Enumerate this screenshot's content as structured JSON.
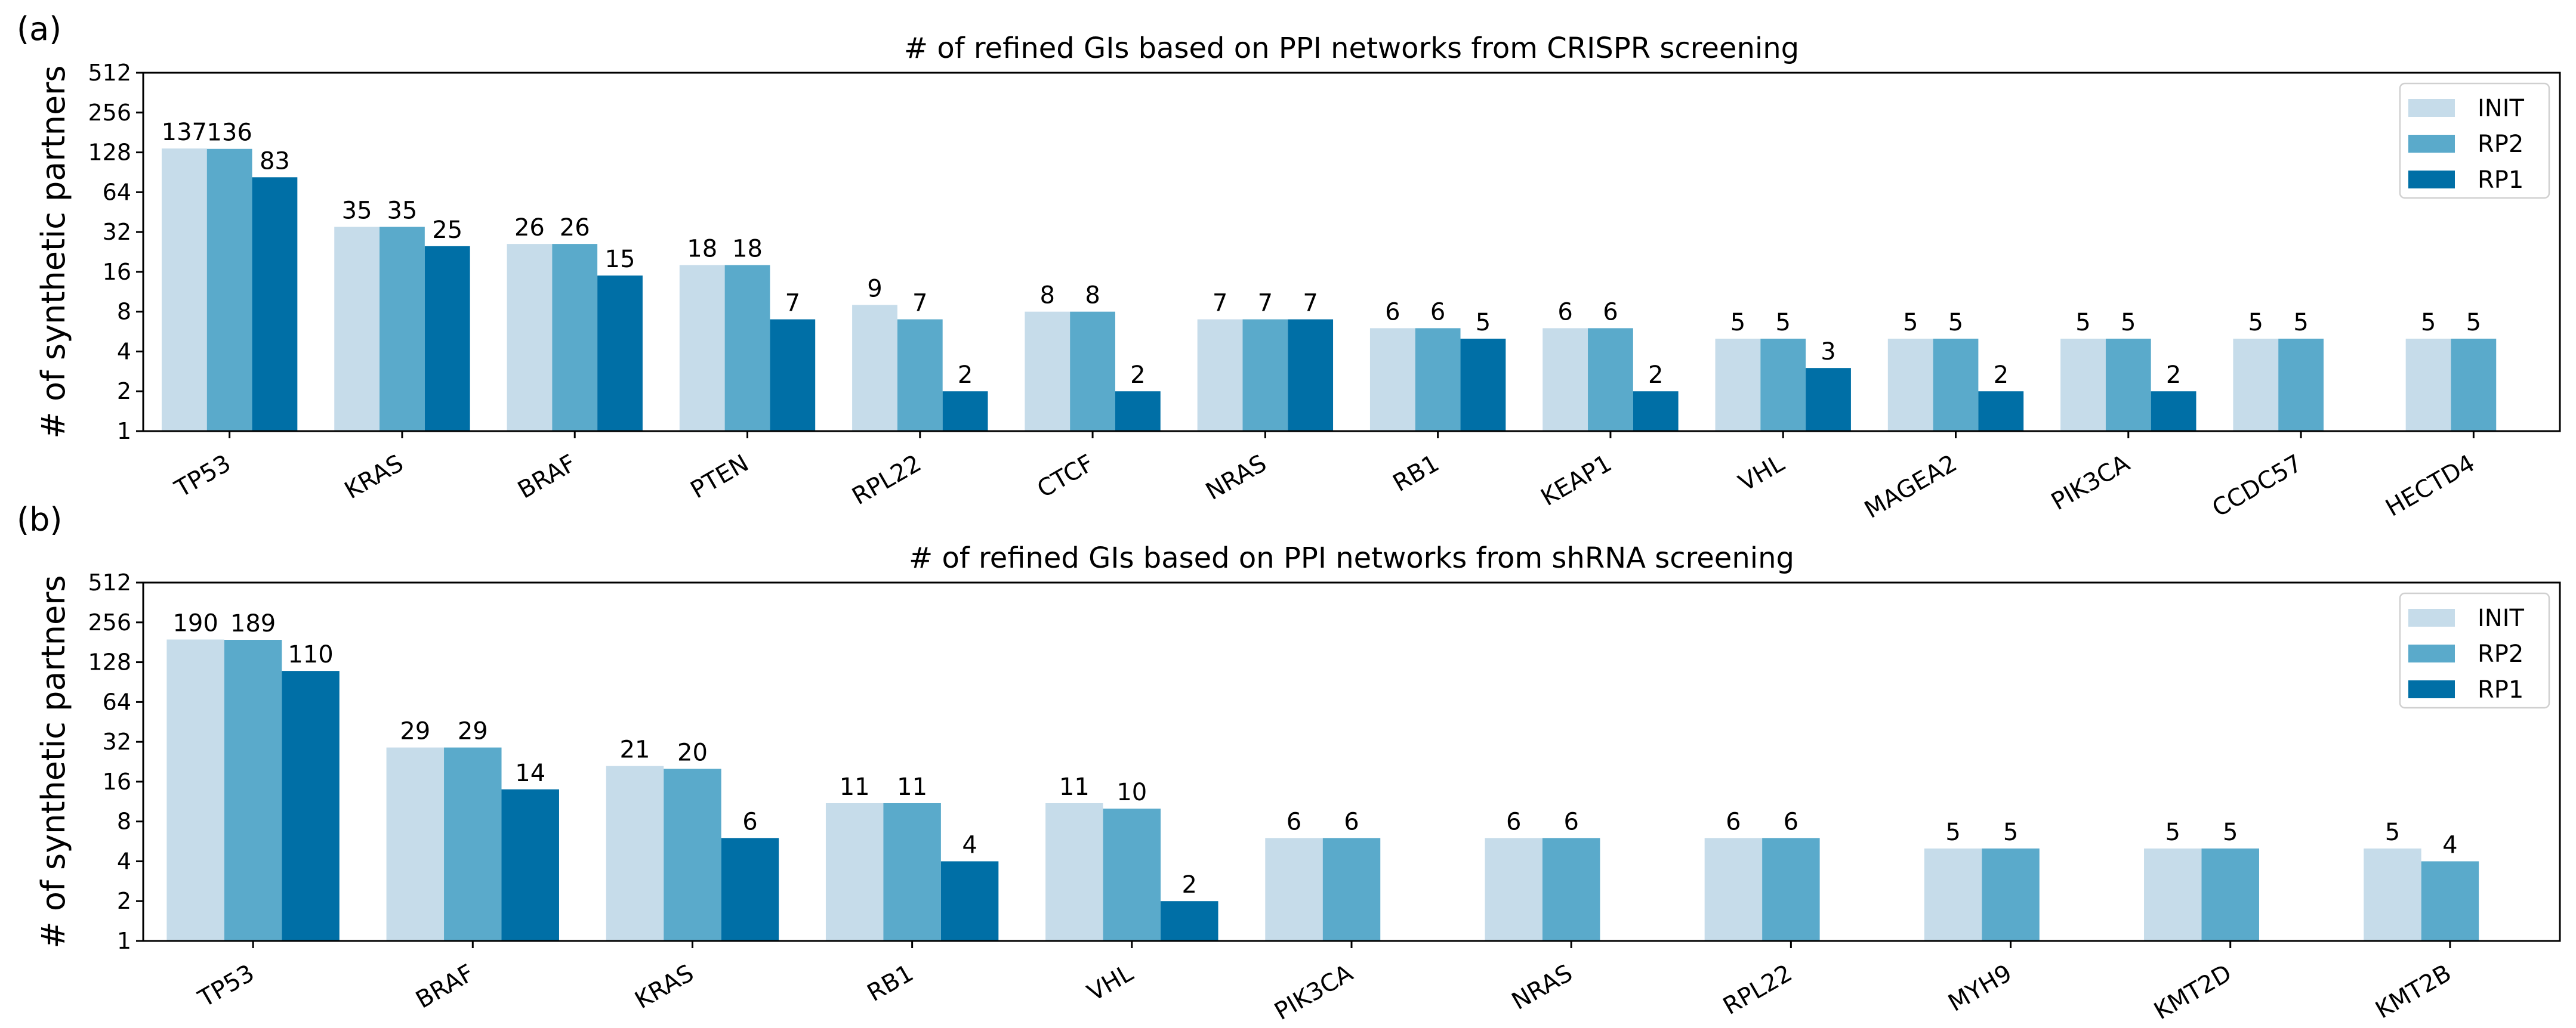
{
  "colors": {
    "INIT": "#c6dcea",
    "RP2": "#5aaacb",
    "RP1": "#006fa6",
    "axis": "#000000",
    "legend_border": "#d0d0d0"
  },
  "legend_labels": [
    "INIT",
    "RP2",
    "RP1"
  ],
  "y_ticks": [
    1,
    2,
    4,
    8,
    16,
    32,
    64,
    128,
    256,
    512
  ],
  "chart_data": [
    {
      "panel_label": "(a)",
      "type": "bar",
      "scale": "log2",
      "title": "# of refined GIs based on PPI networks from CRISPR screening",
      "xlabel": "",
      "ylabel": "# of synthetic partners",
      "ylim": [
        1,
        512
      ],
      "legend": "top-right",
      "categories": [
        "TP53",
        "KRAS",
        "BRAF",
        "PTEN",
        "RPL22",
        "CTCF",
        "NRAS",
        "RB1",
        "KEAP1",
        "VHL",
        "MAGEA2",
        "PIK3CA",
        "CCDC57",
        "HECTD4"
      ],
      "series": [
        {
          "name": "INIT",
          "values": [
            137,
            35,
            26,
            18,
            9,
            8,
            7,
            6,
            6,
            5,
            5,
            5,
            5,
            5
          ]
        },
        {
          "name": "RP2",
          "values": [
            136,
            35,
            26,
            18,
            7,
            8,
            7,
            6,
            6,
            5,
            5,
            5,
            5,
            5
          ]
        },
        {
          "name": "RP1",
          "values": [
            83,
            25,
            15,
            7,
            2,
            2,
            7,
            5,
            2,
            3,
            2,
            2,
            null,
            null
          ]
        }
      ]
    },
    {
      "panel_label": "(b)",
      "type": "bar",
      "scale": "log2",
      "title": "# of refined GIs based on PPI networks from shRNA screening",
      "xlabel": "",
      "ylabel": "# of synthetic partners",
      "ylim": [
        1,
        512
      ],
      "legend": "top-right",
      "categories": [
        "TP53",
        "BRAF",
        "KRAS",
        "RB1",
        "VHL",
        "PIK3CA",
        "NRAS",
        "RPL22",
        "MYH9",
        "KMT2D",
        "KMT2B"
      ],
      "series": [
        {
          "name": "INIT",
          "values": [
            190,
            29,
            21,
            11,
            11,
            6,
            6,
            6,
            5,
            5,
            5
          ]
        },
        {
          "name": "RP2",
          "values": [
            189,
            29,
            20,
            11,
            10,
            6,
            6,
            6,
            5,
            5,
            4
          ]
        },
        {
          "name": "RP1",
          "values": [
            110,
            14,
            6,
            4,
            2,
            null,
            null,
            null,
            null,
            null,
            null
          ]
        }
      ]
    }
  ]
}
